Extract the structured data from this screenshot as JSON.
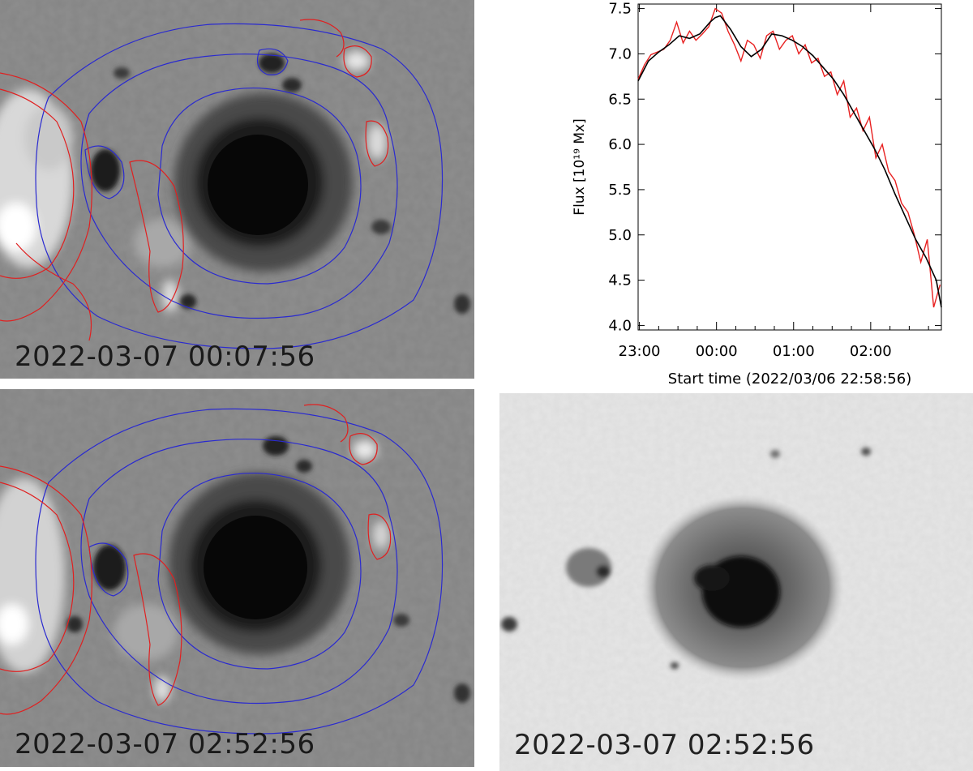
{
  "panels": {
    "magnetogram_top": {
      "timestamp": "2022-03-07  00:07:56"
    },
    "magnetogram_bottom": {
      "timestamp": "2022-03-07  02:52:56"
    },
    "continuum": {
      "timestamp": "2022-03-07  02:52:56"
    }
  },
  "colors": {
    "positive_contour": "#e02020",
    "negative_contour": "#2a2ad0",
    "raw_flux": "#e82020",
    "smoothed_flux": "#000000"
  },
  "chart_data": {
    "type": "line",
    "ylabel": "Flux [10¹⁹ Mx]",
    "xlabel": "Start time (2022/03/06 22:58:56)",
    "x_unit": "minutes since start",
    "xlim": [
      0,
      236
    ],
    "ylim": [
      3.95,
      7.55
    ],
    "x_ticks": [
      {
        "value": 1,
        "label": "23:00"
      },
      {
        "value": 61,
        "label": "00:00"
      },
      {
        "value": 121,
        "label": "01:00"
      },
      {
        "value": 181,
        "label": "02:00"
      }
    ],
    "y_ticks": [
      {
        "value": 4.0,
        "label": "4.0"
      },
      {
        "value": 4.5,
        "label": "4.5"
      },
      {
        "value": 5.0,
        "label": "5.0"
      },
      {
        "value": 5.5,
        "label": "5.5"
      },
      {
        "value": 6.0,
        "label": "6.0"
      },
      {
        "value": 6.5,
        "label": "6.5"
      },
      {
        "value": 7.0,
        "label": "7.0"
      },
      {
        "value": 7.5,
        "label": "7.5"
      }
    ],
    "series": [
      {
        "style": "raw",
        "x": [
          0,
          5,
          10,
          15,
          20,
          25,
          30,
          35,
          40,
          45,
          50,
          55,
          60,
          65,
          70,
          75,
          80,
          85,
          90,
          95,
          100,
          105,
          110,
          115,
          120,
          125,
          130,
          135,
          140,
          145,
          150,
          155,
          160,
          165,
          170,
          175,
          180,
          185,
          190,
          195,
          200,
          205,
          210,
          215,
          220,
          225,
          230,
          235
        ],
        "y": [
          6.72,
          6.88,
          6.99,
          7.02,
          7.05,
          7.15,
          7.35,
          7.12,
          7.25,
          7.15,
          7.22,
          7.3,
          7.5,
          7.45,
          7.25,
          7.1,
          6.92,
          7.15,
          7.1,
          6.95,
          7.2,
          7.25,
          7.05,
          7.15,
          7.2,
          7.0,
          7.1,
          6.9,
          6.95,
          6.75,
          6.8,
          6.55,
          6.7,
          6.3,
          6.4,
          6.15,
          6.3,
          5.85,
          6.0,
          5.7,
          5.6,
          5.35,
          5.25,
          5.0,
          4.7,
          4.95,
          4.2,
          4.45
        ]
      },
      {
        "style": "smoothed",
        "x": [
          0,
          8,
          16,
          24,
          32,
          40,
          48,
          56,
          60,
          64,
          72,
          80,
          88,
          96,
          104,
          112,
          120,
          128,
          136,
          144,
          152,
          160,
          168,
          176,
          184,
          192,
          200,
          208,
          216,
          224,
          232,
          236
        ],
        "y": [
          6.7,
          6.92,
          7.02,
          7.1,
          7.2,
          7.17,
          7.22,
          7.35,
          7.4,
          7.42,
          7.27,
          7.08,
          6.97,
          7.05,
          7.22,
          7.2,
          7.15,
          7.08,
          6.98,
          6.85,
          6.72,
          6.55,
          6.35,
          6.15,
          5.95,
          5.72,
          5.45,
          5.2,
          4.95,
          4.75,
          4.5,
          4.2
        ]
      }
    ]
  }
}
